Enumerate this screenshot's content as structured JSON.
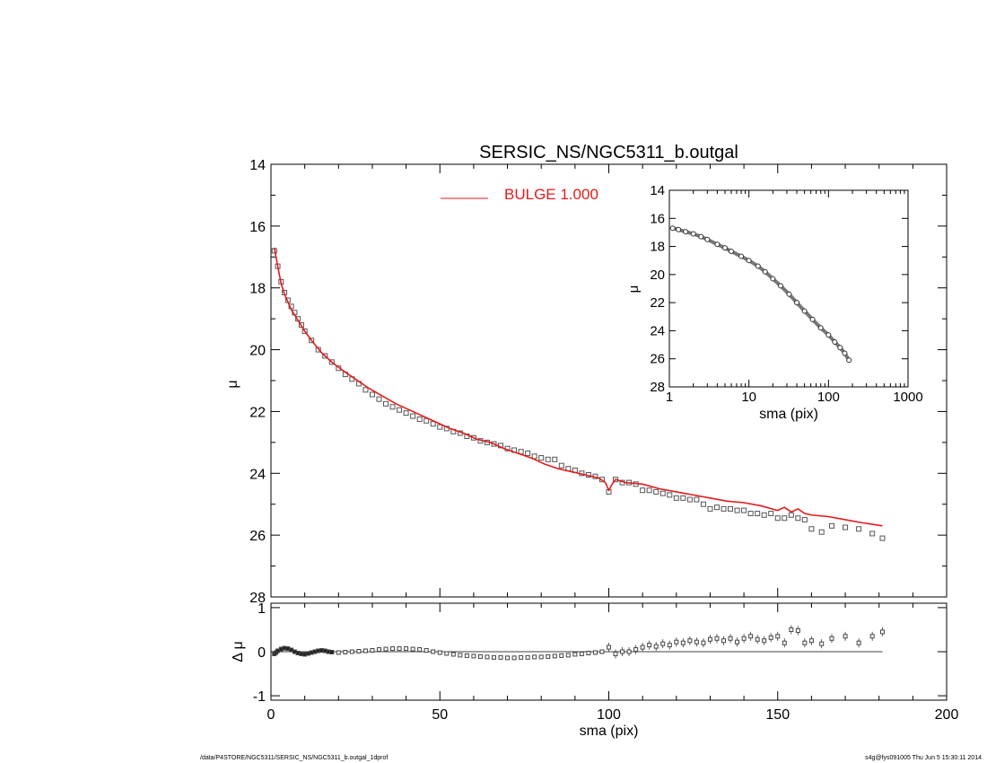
{
  "footer": {
    "left": "/data/P4STORE/NGC5311/SERSIC_NS/NGC5311_b.outgal_1dprof",
    "right": "s4g@fys091005  Thu Jun  5 15:30:11 2014"
  },
  "colors": {
    "model": "#e41a1c",
    "points": "#555555",
    "axes": "#000000"
  },
  "chart_data": [
    {
      "id": "main",
      "type": "scatter",
      "title": "SERSIC_NS/NGC5311_b.outgal",
      "xlabel": "",
      "ylabel": "μ",
      "xlim": [
        0,
        200
      ],
      "ylim": [
        28,
        14
      ],
      "yticks": [
        14,
        16,
        18,
        20,
        22,
        24,
        26,
        28
      ],
      "legend": [
        {
          "label": "BULGE  1.000",
          "color": "#e41a1c",
          "position": "top-center"
        }
      ],
      "series": [
        {
          "name": "BULGE  1.000",
          "kind": "line",
          "x": [
            1,
            2,
            3,
            4,
            5,
            6,
            8,
            10,
            12,
            15,
            18,
            21,
            25,
            29,
            33,
            37,
            41,
            45,
            49,
            53,
            57,
            61,
            65,
            69,
            73,
            77,
            81,
            85,
            89,
            93,
            97,
            99,
            100,
            101,
            102,
            105,
            110,
            115,
            120,
            125,
            130,
            135,
            140,
            145,
            150,
            152,
            154,
            156,
            158,
            160,
            165,
            170,
            175,
            181
          ],
          "y": [
            16.7,
            17.3,
            17.85,
            18.2,
            18.45,
            18.7,
            19.05,
            19.4,
            19.7,
            20.1,
            20.4,
            20.65,
            20.95,
            21.25,
            21.5,
            21.75,
            21.95,
            22.15,
            22.35,
            22.55,
            22.7,
            22.9,
            23.0,
            23.2,
            23.35,
            23.5,
            23.7,
            23.85,
            23.95,
            24.05,
            24.15,
            24.3,
            24.55,
            24.35,
            24.2,
            24.3,
            24.35,
            24.5,
            24.6,
            24.7,
            24.8,
            24.9,
            24.95,
            25.05,
            25.2,
            25.1,
            25.25,
            25.15,
            25.3,
            25.35,
            25.4,
            25.5,
            25.6,
            25.7
          ]
        }
      ],
      "points": {
        "x": [
          1,
          2,
          3,
          4,
          5,
          6,
          7,
          8,
          9,
          10,
          12,
          14,
          16,
          18,
          20,
          22,
          24,
          26,
          28,
          30,
          32,
          34,
          36,
          38,
          40,
          42,
          44,
          46,
          48,
          50,
          52,
          54,
          56,
          58,
          60,
          62,
          64,
          66,
          68,
          70,
          72,
          74,
          76,
          78,
          80,
          82,
          84,
          86,
          88,
          90,
          92,
          94,
          96,
          98,
          100,
          102,
          104,
          106,
          108,
          110,
          112,
          114,
          116,
          118,
          120,
          122,
          124,
          126,
          128,
          130,
          132,
          134,
          136,
          138,
          140,
          142,
          144,
          146,
          148,
          150,
          152,
          154,
          156,
          158,
          160,
          163,
          166,
          170,
          174,
          178,
          181
        ],
        "y": [
          16.8,
          17.3,
          17.8,
          18.15,
          18.4,
          18.6,
          18.8,
          19.0,
          19.2,
          19.4,
          19.7,
          20.0,
          20.2,
          20.4,
          20.6,
          20.8,
          20.95,
          21.1,
          21.3,
          21.45,
          21.6,
          21.75,
          21.85,
          21.95,
          22.05,
          22.15,
          22.25,
          22.3,
          22.4,
          22.5,
          22.55,
          22.65,
          22.7,
          22.8,
          22.85,
          22.95,
          23.0,
          23.05,
          23.1,
          23.2,
          23.25,
          23.3,
          23.35,
          23.45,
          23.5,
          23.55,
          23.55,
          23.75,
          23.85,
          23.9,
          24.0,
          24.05,
          24.1,
          24.2,
          24.6,
          24.2,
          24.3,
          24.3,
          24.35,
          24.55,
          24.55,
          24.6,
          24.65,
          24.7,
          24.8,
          24.8,
          24.85,
          24.85,
          25.0,
          25.15,
          25.1,
          25.15,
          25.15,
          25.2,
          25.2,
          25.3,
          25.3,
          25.35,
          25.3,
          25.45,
          25.45,
          25.35,
          25.45,
          25.5,
          25.8,
          25.9,
          25.7,
          25.75,
          25.8,
          25.95,
          26.1
        ]
      }
    },
    {
      "id": "inset",
      "type": "scatter",
      "title": "",
      "xlabel": "sma (pix)",
      "ylabel": "μ",
      "xscale": "log",
      "xlim": [
        1,
        1000
      ],
      "xticks": [
        1,
        10,
        100,
        1000
      ],
      "ylim": [
        28,
        14
      ],
      "yticks": [
        14,
        16,
        18,
        20,
        22,
        24,
        26,
        28
      ],
      "points": {
        "x": [
          1.1,
          1.3,
          1.6,
          2,
          2.5,
          3,
          4,
          5,
          6,
          8,
          10,
          13,
          16,
          20,
          25,
          32,
          40,
          50,
          63,
          80,
          100,
          120,
          140,
          160,
          181
        ],
        "y": [
          16.7,
          16.8,
          16.95,
          17.1,
          17.3,
          17.5,
          17.85,
          18.1,
          18.35,
          18.7,
          19.0,
          19.4,
          19.8,
          20.3,
          20.8,
          21.4,
          22.0,
          22.6,
          23.2,
          23.8,
          24.3,
          24.8,
          25.2,
          25.6,
          26.1
        ]
      }
    },
    {
      "id": "residual",
      "type": "scatter",
      "title": "",
      "xlabel": "sma (pix)",
      "ylabel": "Δ μ",
      "xlim": [
        0,
        200
      ],
      "xticks": [
        0,
        50,
        100,
        150,
        200
      ],
      "ylim": [
        -1.1,
        1.1
      ],
      "yticks": [
        1,
        0,
        -1
      ],
      "zero_line": {
        "from": 0,
        "to": 181
      },
      "points": {
        "x": [
          1,
          1.5,
          2,
          3,
          4,
          5,
          6,
          7,
          8,
          9,
          10,
          11,
          12,
          13,
          14,
          15,
          16,
          17,
          18,
          20,
          22,
          24,
          26,
          28,
          30,
          32,
          34,
          36,
          38,
          40,
          42,
          44,
          46,
          48,
          50,
          52,
          54,
          56,
          58,
          60,
          62,
          64,
          66,
          68,
          70,
          72,
          74,
          76,
          78,
          80,
          82,
          84,
          86,
          88,
          90,
          92,
          94,
          96,
          98,
          100,
          102,
          104,
          106,
          108,
          110,
          112,
          114,
          116,
          118,
          120,
          122,
          124,
          126,
          128,
          130,
          132,
          134,
          136,
          138,
          140,
          142,
          144,
          146,
          148,
          150,
          152,
          154,
          156,
          158,
          160,
          163,
          166,
          170,
          174,
          178,
          181
        ],
        "y": [
          -0.05,
          -0.02,
          0.02,
          0.06,
          0.08,
          0.07,
          0.04,
          0.0,
          -0.03,
          -0.05,
          -0.06,
          -0.04,
          -0.02,
          0.0,
          0.02,
          0.03,
          0.02,
          0.0,
          -0.01,
          -0.02,
          -0.01,
          0.0,
          0.01,
          0.02,
          0.03,
          0.05,
          0.06,
          0.07,
          0.07,
          0.07,
          0.06,
          0.05,
          0.03,
          0.0,
          -0.02,
          -0.04,
          -0.06,
          -0.08,
          -0.09,
          -0.1,
          -0.11,
          -0.12,
          -0.13,
          -0.13,
          -0.14,
          -0.14,
          -0.13,
          -0.13,
          -0.12,
          -0.12,
          -0.11,
          -0.1,
          -0.09,
          -0.08,
          -0.06,
          -0.05,
          -0.03,
          -0.02,
          0.0,
          0.1,
          -0.05,
          0.0,
          0.0,
          0.05,
          0.1,
          0.15,
          0.12,
          0.18,
          0.15,
          0.22,
          0.2,
          0.25,
          0.22,
          0.2,
          0.28,
          0.3,
          0.25,
          0.3,
          0.22,
          0.3,
          0.35,
          0.28,
          0.25,
          0.32,
          0.35,
          0.2,
          0.5,
          0.48,
          0.2,
          0.25,
          0.18,
          0.3,
          0.35,
          0.2,
          0.35,
          0.45
        ]
      }
    }
  ]
}
